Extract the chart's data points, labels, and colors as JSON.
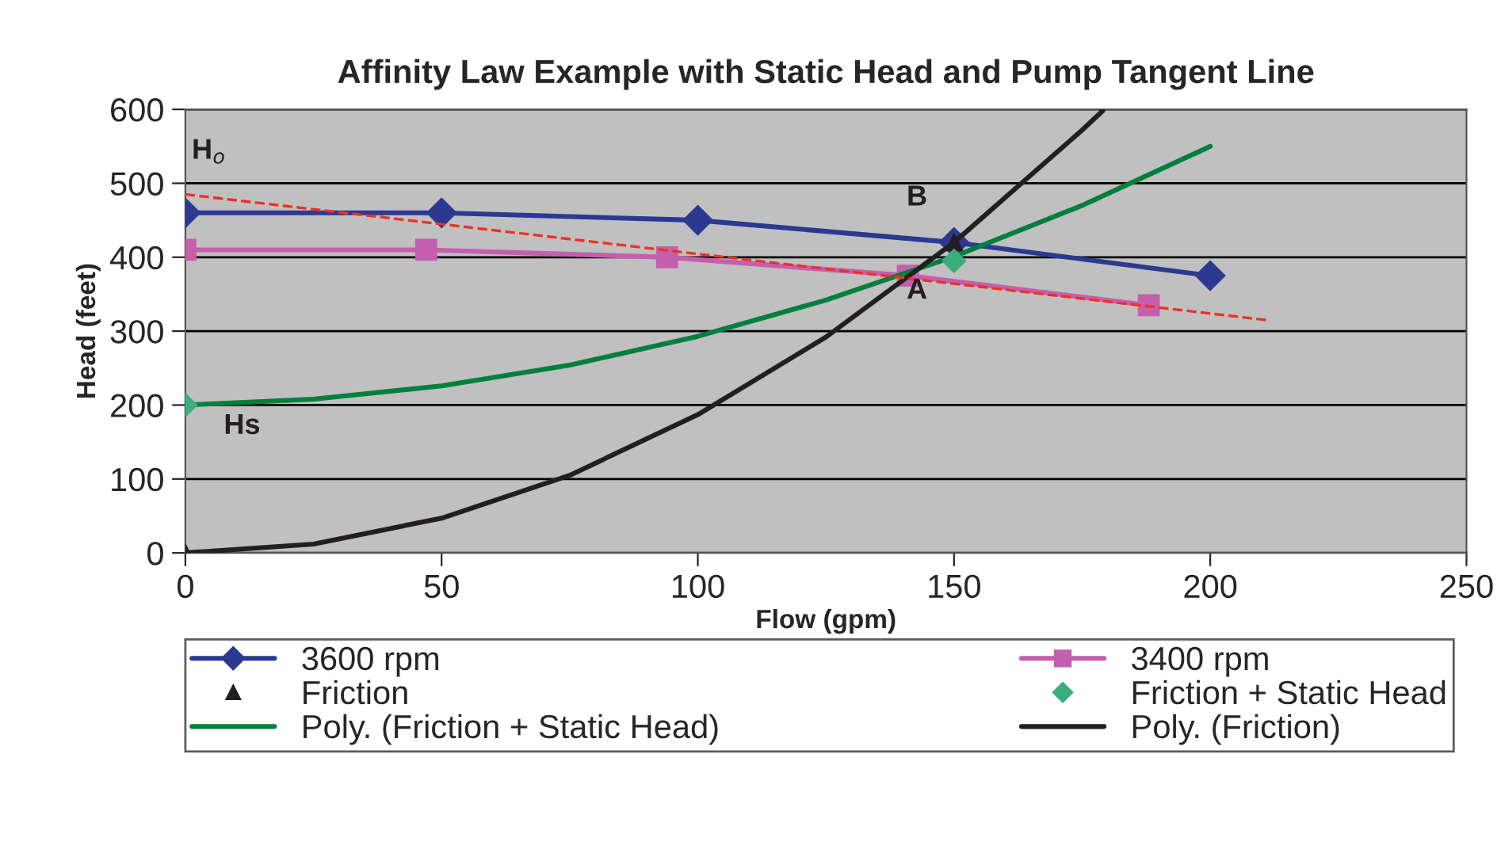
{
  "chart_data": {
    "type": "line",
    "title": "Affinity Law Example with Static Head and Pump Tangent Line",
    "xlabel": "Flow (gpm)",
    "ylabel": "Head (feet)",
    "xlim": [
      0,
      250
    ],
    "xticks": [
      0,
      50,
      100,
      150,
      200,
      250
    ],
    "ylim": [
      0,
      600
    ],
    "yticks": [
      0,
      100,
      200,
      300,
      400,
      500,
      600
    ],
    "grid": "y",
    "legend": "bottom",
    "series": [
      {
        "name": "3600 rpm",
        "type": "line",
        "color": "#2b3990",
        "marker": "diamond",
        "x": [
          0,
          50,
          100,
          150,
          200
        ],
        "values": [
          460,
          460,
          450,
          420,
          375
        ]
      },
      {
        "name": "3400 rpm",
        "type": "line",
        "color": "#c45fae",
        "marker": "square",
        "x": [
          0,
          47,
          94,
          141,
          188
        ],
        "values": [
          410,
          410,
          400,
          375,
          335
        ]
      },
      {
        "name": "Friction",
        "type": "scatter",
        "color": "#231f20",
        "marker": "triangle",
        "x": [
          0,
          150
        ],
        "values": [
          0,
          420
        ]
      },
      {
        "name": "Friction + Static Head",
        "type": "scatter",
        "color": "#3cae7c",
        "marker": "diamond",
        "x": [
          0,
          150
        ],
        "values": [
          200,
          395
        ]
      },
      {
        "name": "Poly. (Friction + Static Head)",
        "type": "line",
        "color": "#00803c",
        "marker": "none",
        "x": [
          0,
          25,
          50,
          75,
          100,
          125,
          150,
          175,
          200
        ],
        "values": [
          200,
          208,
          226,
          254,
          293,
          342,
          401,
          470,
          550
        ]
      },
      {
        "name": "Poly. (Friction)",
        "type": "line",
        "color": "#231f20",
        "marker": "none",
        "x": [
          0,
          25,
          50,
          75,
          100,
          125,
          150,
          175,
          179
        ],
        "values": [
          0,
          12,
          47,
          105,
          187,
          292,
          420,
          572,
          598
        ]
      },
      {
        "type": "line",
        "color": "#ee3124",
        "marker": "none",
        "line_style": "dashed",
        "x": [
          0,
          211
        ],
        "values": [
          485,
          315
        ]
      }
    ],
    "annotations": [
      "H$_{o}$",
      "Hs",
      "B",
      "A"
    ]
  }
}
